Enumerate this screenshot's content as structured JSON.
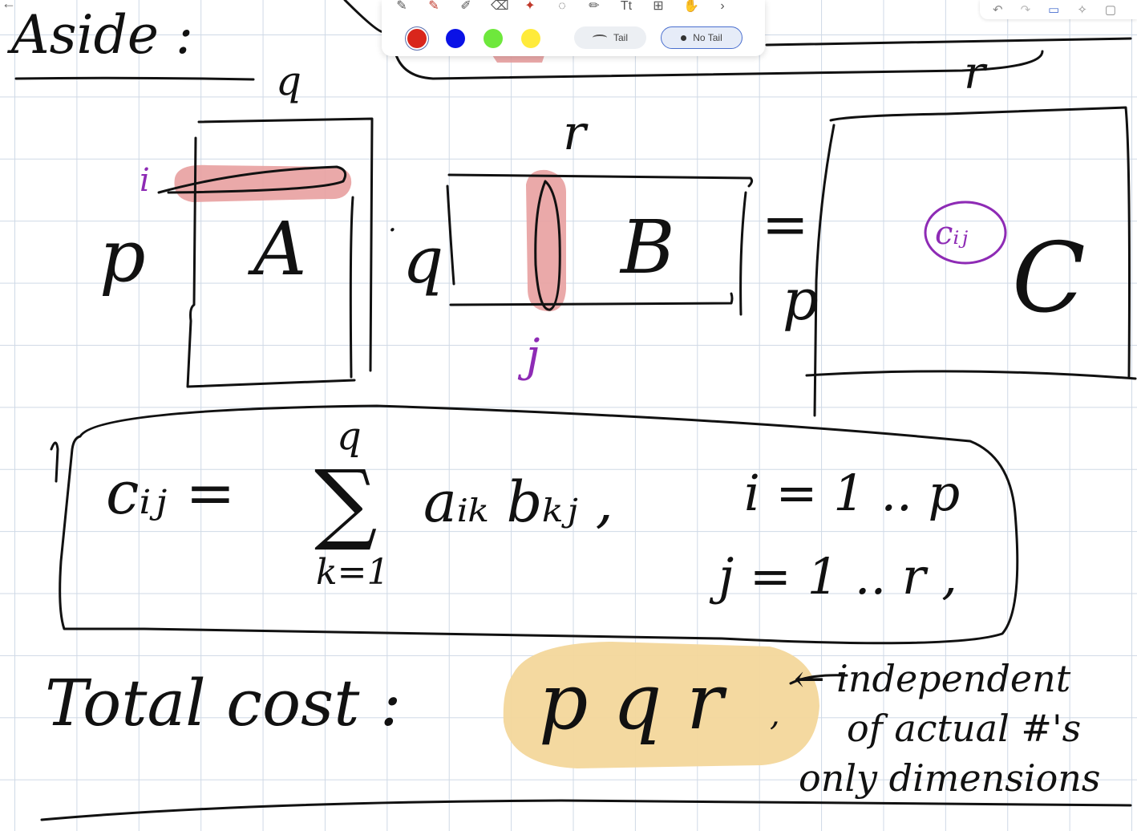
{
  "canvas": {
    "grid_color": "#cfd9e6",
    "ink_color": "#111111",
    "accent_purple": "#8e2bb5",
    "highlight_red": "#e8a0a0",
    "highlight_orange": "#f3d79b"
  },
  "notes": {
    "title": "Aside :",
    "matrix_a": {
      "name": "A",
      "rows": "p",
      "cols": "q"
    },
    "matrix_b": {
      "name": "B",
      "rows": "q",
      "cols": "r"
    },
    "matrix_c": {
      "name": "C",
      "rows": "p",
      "cols": "r",
      "entry": "cᵢⱼ"
    },
    "index_i": "i",
    "index_j": "j",
    "equals": "=",
    "dot": "·",
    "formula": {
      "lhs": "cᵢⱼ =",
      "sum_top": "q",
      "sum_symbol": "∑",
      "sum_bottom": "k=1",
      "terms": "aᵢₖ bₖⱼ ,",
      "range_i": "i = 1 .. p",
      "range_j": "j = 1 .. r ,"
    },
    "cost_label": "Total cost :",
    "cost_value": "p q r",
    "cost_comma": ",",
    "note_line1": "← independent",
    "note_line2": "of actual #'s",
    "note_line3": "only dimensions"
  },
  "toolbar": {
    "tools": [
      "pen-icon",
      "pen-icon",
      "highlighter-icon",
      "eraser-icon",
      "laser-icon",
      "lasso-icon",
      "shape-icon",
      "text-icon",
      "image-icon",
      "hand-icon",
      "more-icon"
    ],
    "colors": [
      "#d9261c",
      "#0a12e6",
      "#6ee83c",
      "#ffeb3b"
    ],
    "selected_color": "#d9261c",
    "tail_label": "Tail",
    "no_tail_label": "No Tail"
  }
}
